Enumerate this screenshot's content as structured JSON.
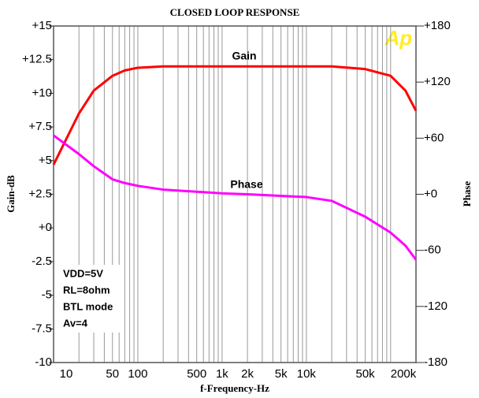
{
  "chart_data": {
    "type": "line",
    "title": "CLOSED LOOP RESPONSE",
    "xlabel": "f-Frequency-Hz",
    "ylabel": "Gain-dB",
    "y2label": "Phase",
    "logo": "Ap",
    "xscale": "log",
    "xlim": [
      10,
      200000
    ],
    "xticks": [
      10,
      50,
      100,
      500,
      {
        "value": 1000,
        "label": "1k"
      },
      {
        "value": 2000,
        "label": "2k"
      },
      {
        "value": 5000,
        "label": "5k"
      },
      {
        "value": 10000,
        "label": "10k"
      },
      {
        "value": 50000,
        "label": "50k"
      },
      {
        "value": 200000,
        "label": "200k"
      }
    ],
    "xgrid": [
      10,
      20,
      30,
      40,
      50,
      60,
      70,
      80,
      90,
      100,
      200,
      300,
      400,
      500,
      600,
      700,
      800,
      900,
      1000,
      2000,
      3000,
      4000,
      5000,
      6000,
      7000,
      8000,
      9000,
      10000,
      20000,
      30000,
      40000,
      50000,
      60000,
      70000,
      80000,
      90000,
      100000,
      200000
    ],
    "ylim": [
      -10,
      15
    ],
    "yticks": [
      {
        "value": 15,
        "label": "+15"
      },
      {
        "value": 12.5,
        "label": "+12.5"
      },
      {
        "value": 10,
        "label": "+10"
      },
      {
        "value": 7.5,
        "label": "+7.5"
      },
      {
        "value": 5,
        "label": "+5"
      },
      {
        "value": 2.5,
        "label": "+2.5"
      },
      {
        "value": 0,
        "label": "+0"
      },
      -2.5,
      -5,
      -7.5,
      -10
    ],
    "y2lim": [
      -180,
      180
    ],
    "y2ticks": [
      {
        "value": 180,
        "label": "+180"
      },
      {
        "value": 120,
        "label": "+120"
      },
      {
        "value": 60,
        "label": "+60"
      },
      {
        "value": 0,
        "label": "+0"
      },
      -60,
      -120,
      -180
    ],
    "x": [
      10,
      20,
      30,
      50,
      70,
      100,
      200,
      1000,
      2000,
      10000,
      20000,
      50000,
      100000,
      150000,
      200000
    ],
    "series": [
      {
        "name": "Gain",
        "color": "#ff0000",
        "axis": "y",
        "values": [
          4.7,
          8.5,
          10.2,
          11.3,
          11.7,
          11.9,
          12.0,
          12.0,
          12.0,
          12.0,
          12.0,
          11.8,
          11.3,
          10.2,
          8.7
        ]
      },
      {
        "name": "Phase",
        "color": "#ff00ff",
        "axis": "y2",
        "values": [
          63,
          43,
          30,
          16,
          12,
          9,
          5,
          1,
          0,
          -3,
          -7,
          -24,
          -41,
          -55,
          -70
        ]
      }
    ],
    "annotations": [
      "VDD=5V",
      "RL=8ohm",
      "BTL mode",
      "Av=4"
    ]
  }
}
